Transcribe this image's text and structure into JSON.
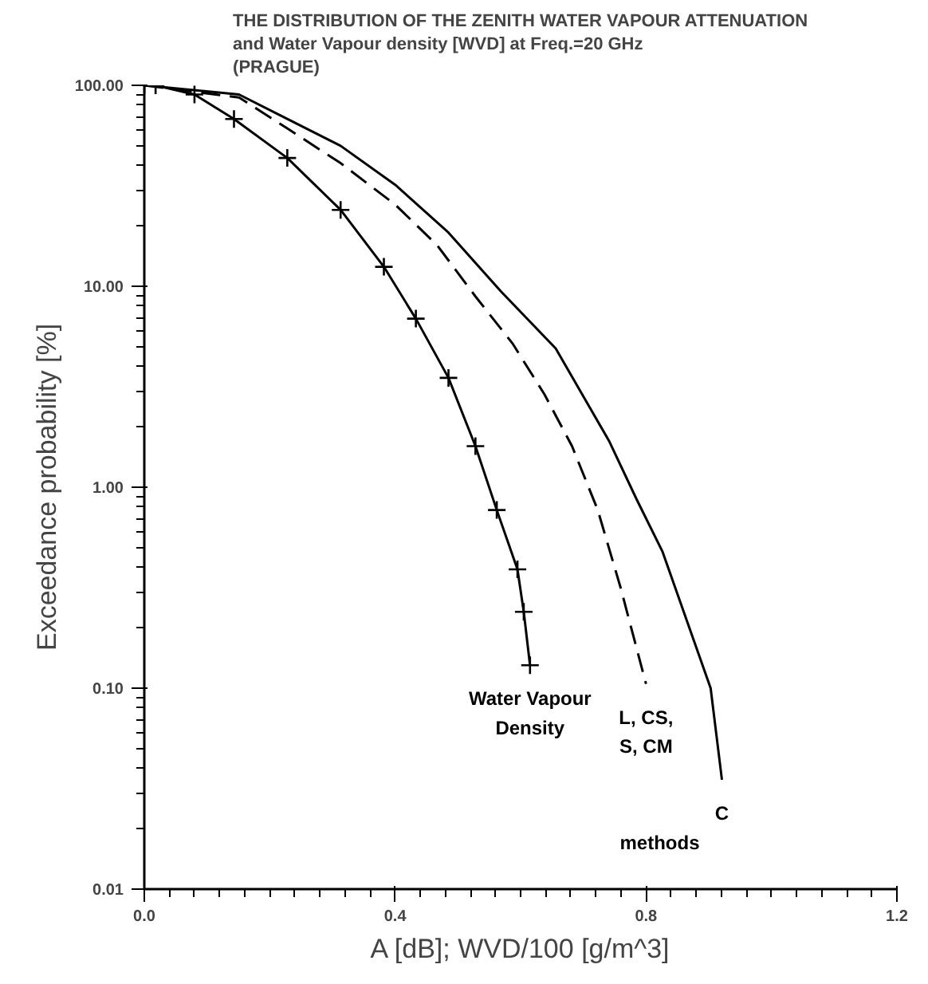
{
  "chart_data": {
    "type": "line",
    "title": "THE DISTRIBUTION OF THE ZENITH WATER VAPOUR ATTENUATION\nand Water Vapour density [WVD] at Freq.=20 GHz\n(PRAGUE)",
    "xlabel": "A [dB]; WVD/100 [g/m^3]",
    "ylabel": "Exceedance probability [%]",
    "log": "y",
    "grid": false,
    "legend": false,
    "xlim": [
      0,
      1.2
    ],
    "ylim": [
      0.01,
      100
    ],
    "xticks": [
      {
        "value": 0,
        "label": "0.0"
      },
      {
        "value": 0.04,
        "label": null
      },
      {
        "value": 0.08,
        "label": null
      },
      {
        "value": 0.12,
        "label": null
      },
      {
        "value": 0.16,
        "label": null
      },
      {
        "value": 0.2,
        "label": null
      },
      {
        "value": 0.24,
        "label": null
      },
      {
        "value": 0.28,
        "label": null
      },
      {
        "value": 0.32,
        "label": null
      },
      {
        "value": 0.36,
        "label": null
      },
      {
        "value": 0.4,
        "label": "0.4"
      },
      {
        "value": 0.44,
        "label": null
      },
      {
        "value": 0.48,
        "label": null
      },
      {
        "value": 0.52,
        "label": null
      },
      {
        "value": 0.56,
        "label": null
      },
      {
        "value": 0.6,
        "label": null
      },
      {
        "value": 0.64,
        "label": null
      },
      {
        "value": 0.68,
        "label": null
      },
      {
        "value": 0.72,
        "label": null
      },
      {
        "value": 0.76,
        "label": null
      },
      {
        "value": 0.8,
        "label": "0.8"
      },
      {
        "value": 0.84,
        "label": null
      },
      {
        "value": 0.88,
        "label": null
      },
      {
        "value": 0.92,
        "label": null
      },
      {
        "value": 0.96,
        "label": null
      },
      {
        "value": 1.0,
        "label": null
      },
      {
        "value": 1.04,
        "label": null
      },
      {
        "value": 1.08,
        "label": null
      },
      {
        "value": 1.12,
        "label": null
      },
      {
        "value": 1.16,
        "label": null
      },
      {
        "value": 1.2,
        "label": "1.2"
      }
    ],
    "yticks": [
      {
        "value": 0.01,
        "label": "0.01"
      },
      {
        "value": 0.1,
        "label": "0.10"
      },
      {
        "value": 1,
        "label": "1.00"
      },
      {
        "value": 10,
        "label": "10.00"
      },
      {
        "value": 100,
        "label": "100.00"
      }
    ],
    "series": [
      {
        "name": "Water Vapour\nDensity",
        "color": "#000000",
        "marker": "cross",
        "line_style": "solid",
        "x": [
          0.0,
          0.018,
          0.08,
          0.143,
          0.228,
          0.313,
          0.382,
          0.433,
          0.485,
          0.528,
          0.562,
          0.595,
          0.605,
          0.615
        ],
        "values": [
          100,
          100,
          90,
          68,
          43.5,
          24,
          12.5,
          6.9,
          3.5,
          1.6,
          0.77,
          0.39,
          0.24,
          0.13
        ]
      },
      {
        "name": "L, CS,\nS, CM",
        "color": "#000000",
        "marker": "none",
        "line_style": "dashed",
        "x": [
          0.0,
          0.151,
          0.228,
          0.313,
          0.4,
          0.467,
          0.528,
          0.587,
          0.638,
          0.682,
          0.723,
          0.759,
          0.8
        ],
        "values": [
          100,
          87,
          61,
          41,
          25.5,
          16,
          8.9,
          5.2,
          2.9,
          1.6,
          0.77,
          0.32,
          0.105
        ]
      },
      {
        "name": "C",
        "color": "#000000",
        "marker": "none",
        "line_style": "solid",
        "x": [
          0.0,
          0.151,
          0.228,
          0.313,
          0.4,
          0.485,
          0.569,
          0.656,
          0.741,
          0.785,
          0.826,
          0.877,
          0.903,
          0.921
        ],
        "values": [
          100,
          90,
          68,
          50,
          32,
          18.5,
          9.4,
          4.9,
          1.7,
          0.87,
          0.48,
          0.17,
          0.1,
          0.035
        ]
      }
    ],
    "annotations": [
      "methods"
    ]
  }
}
